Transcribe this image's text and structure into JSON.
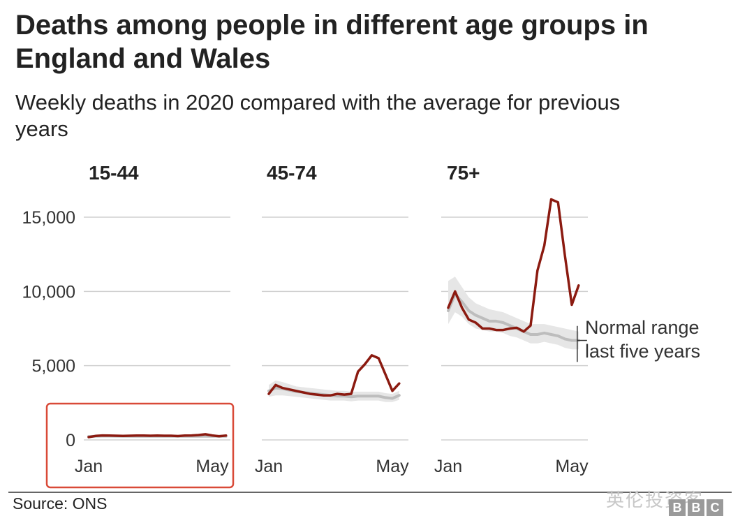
{
  "title": "Deaths among people in different age groups in England and Wales",
  "subtitle": "Weekly deaths in 2020 compared with the average for previous years",
  "source": "Source: ONS",
  "watermark": "英伦投资客",
  "logo": [
    "B",
    "B",
    "C"
  ],
  "colors": {
    "deaths_2020": "#8b1a10",
    "normal_range_band": "#e6e6e6",
    "average": "#bdbdbd",
    "gridline": "#d0d0d0",
    "highlight_box": "#d94a38"
  },
  "chart_data": {
    "type": "line",
    "ylim": [
      0,
      15000
    ],
    "yticks": [
      0,
      5000,
      10000,
      15000
    ],
    "ytick_labels": [
      "0",
      "5,000",
      "10,000",
      "15,000"
    ],
    "grid": true,
    "x": [
      1,
      2,
      3,
      4,
      5,
      6,
      7,
      8,
      9,
      10,
      11,
      12,
      13,
      14,
      15,
      16,
      17,
      18,
      19,
      20,
      21
    ],
    "xtick_labels": [
      {
        "x": 1,
        "label": "Jan"
      },
      {
        "x": 19,
        "label": "May"
      }
    ],
    "legend_annotation": {
      "text": [
        "Normal range",
        "last five years"
      ],
      "panel": "75+"
    },
    "panels": [
      {
        "name": "15-44",
        "highlighted": true,
        "series": [
          {
            "values": [
              190,
              270,
              300,
              290,
              280,
              270,
              280,
              290,
              290,
              280,
              290,
              280,
              280,
              260,
              290,
              300,
              330,
              380,
              300,
              250,
              290
            ]
          },
          {
            "values": [
              230,
              250,
              260,
              260,
              255,
              250,
              250,
              250,
              250,
              250,
              250,
              250,
              250,
              250,
              250,
              250,
              250,
              250,
              250,
              250,
              250
            ]
          },
          {
            "values_low": [
              180,
              200,
              210,
              210,
              205,
              200,
              200,
              200,
              200,
              200,
              200,
              200,
              200,
              200,
              200,
              200,
              200,
              200,
              200,
              200,
              200
            ],
            "values_high": [
              290,
              310,
              320,
              320,
              315,
              310,
              310,
              310,
              310,
              310,
              310,
              310,
              310,
              310,
              310,
              310,
              310,
              310,
              310,
              310,
              310
            ]
          }
        ]
      },
      {
        "name": "45-74",
        "highlighted": false,
        "series": [
          {
            "values": [
              3100,
              3700,
              3500,
              3400,
              3300,
              3200,
              3100,
              3050,
              3000,
              3000,
              3100,
              3050,
              3100,
              4600,
              5100,
              5700,
              5500,
              4400,
              3300,
              3800
            ]
          },
          {
            "values": [
              3300,
              3500,
              3450,
              3350,
              3250,
              3200,
              3150,
              3100,
              3050,
              3000,
              2950,
              2950,
              2900,
              2950,
              2950,
              2950,
              2950,
              2850,
              2800,
              3000
            ]
          },
          {
            "values_low": [
              2900,
              3000,
              3000,
              2950,
              2900,
              2850,
              2800,
              2750,
              2700,
              2650,
              2650,
              2650,
              2600,
              2650,
              2650,
              2650,
              2650,
              2550,
              2550,
              2700
            ],
            "values_high": [
              3700,
              4000,
              3900,
              3750,
              3600,
              3550,
              3500,
              3450,
              3400,
              3350,
              3300,
              3300,
              3250,
              3250,
              3250,
              3250,
              3250,
              3150,
              3100,
              3300
            ]
          }
        ]
      },
      {
        "name": "75+",
        "highlighted": false,
        "series": [
          {
            "values": [
              8900,
              10000,
              8900,
              8100,
              7900,
              7500,
              7500,
              7400,
              7400,
              7500,
              7550,
              7300,
              7700,
              11400,
              13100,
              16200,
              16000,
              12400,
              9100,
              10400
            ]
          },
          {
            "values": [
              8700,
              9800,
              9300,
              8700,
              8400,
              8200,
              8000,
              8000,
              7900,
              7700,
              7500,
              7300,
              7100,
              7100,
              7200,
              7100,
              7000,
              6800,
              6700,
              6700
            ]
          },
          {
            "values_low": [
              7800,
              8600,
              8300,
              7800,
              7500,
              7400,
              7300,
              7300,
              7200,
              7000,
              6900,
              6700,
              6500,
              6500,
              6600,
              6500,
              6400,
              6200,
              6100,
              6100
            ],
            "values_high": [
              10700,
              11000,
              10300,
              9600,
              9200,
              9000,
              8800,
              8700,
              8600,
              8400,
              8200,
              8000,
              7800,
              7800,
              7800,
              7700,
              7600,
              7500,
              7400,
              7300
            ]
          }
        ]
      }
    ]
  }
}
